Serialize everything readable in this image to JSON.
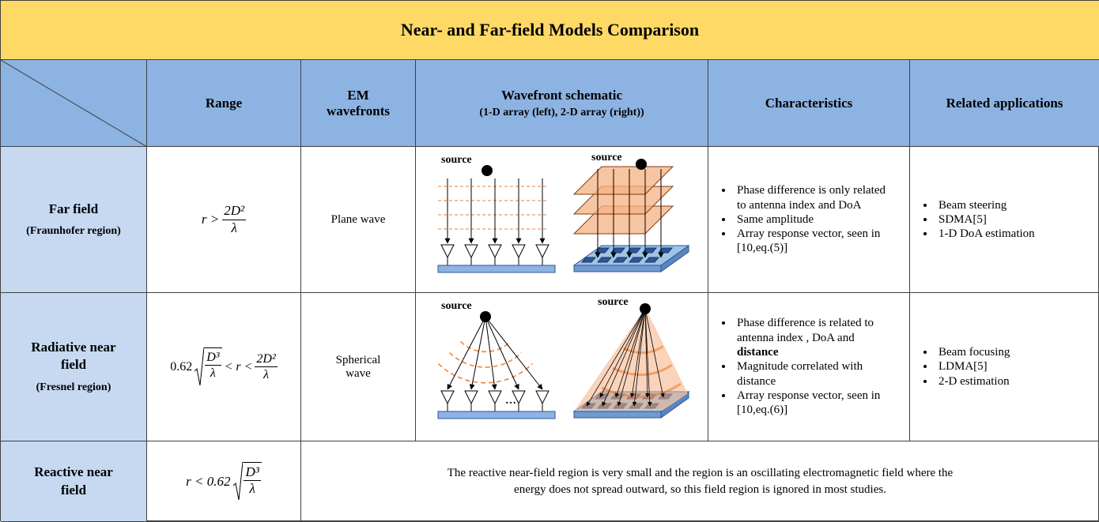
{
  "title": "Near- and Far-field Models  Comparison",
  "header": {
    "range": "Range",
    "wavefronts": "EM wavefronts",
    "schematic": "Wavefront schematic",
    "schematic_note": "(1-D array (left), 2-D array (right))",
    "characteristics": "Characteristics",
    "applications": "Related applications"
  },
  "rows": [
    {
      "name": "Far field",
      "note": "(Fraunhofer region)",
      "range": {
        "lhs": "r >",
        "num": "2D²",
        "den": "λ"
      },
      "wavefront": "Plane wave",
      "schematic": {
        "left_label": "source",
        "right_label": "source"
      },
      "characteristics": [
        "Phase difference is only related to antenna index and DoA",
        "Same amplitude",
        "Array response vector, seen in [10,eq.(5)]"
      ],
      "applications": [
        "Beam steering",
        "SDMA[5]",
        "1-D DoA estimation"
      ]
    },
    {
      "name": "Radiative near field",
      "note": "(Fresnel region)",
      "range": {
        "coef": "0.62",
        "root_num": "D³",
        "root_den": "λ",
        "mid": "< r <",
        "num": "2D²",
        "den": "λ"
      },
      "wavefront": "Spherical wave",
      "schematic": {
        "left_label": "source",
        "right_label": "source",
        "ellipsis": "…"
      },
      "characteristics": [
        {
          "text": "Phase difference is related to antenna index , DoA and ",
          "bold": "distance"
        },
        "Magnitude correlated with distance",
        "Array response vector, seen in [10,eq.(6)]"
      ],
      "applications": [
        "Beam focusing",
        "LDMA[5]",
        "2-D estimation"
      ]
    },
    {
      "name": "Reactive near field",
      "range": {
        "lhs": "r < 0.62",
        "root_num": "D³",
        "root_den": "λ"
      },
      "description": "The reactive near-field region is very small and the region is an oscillating electromagnetic field where the energy does not spread outward, so this field region is ignored in most studies."
    }
  ]
}
